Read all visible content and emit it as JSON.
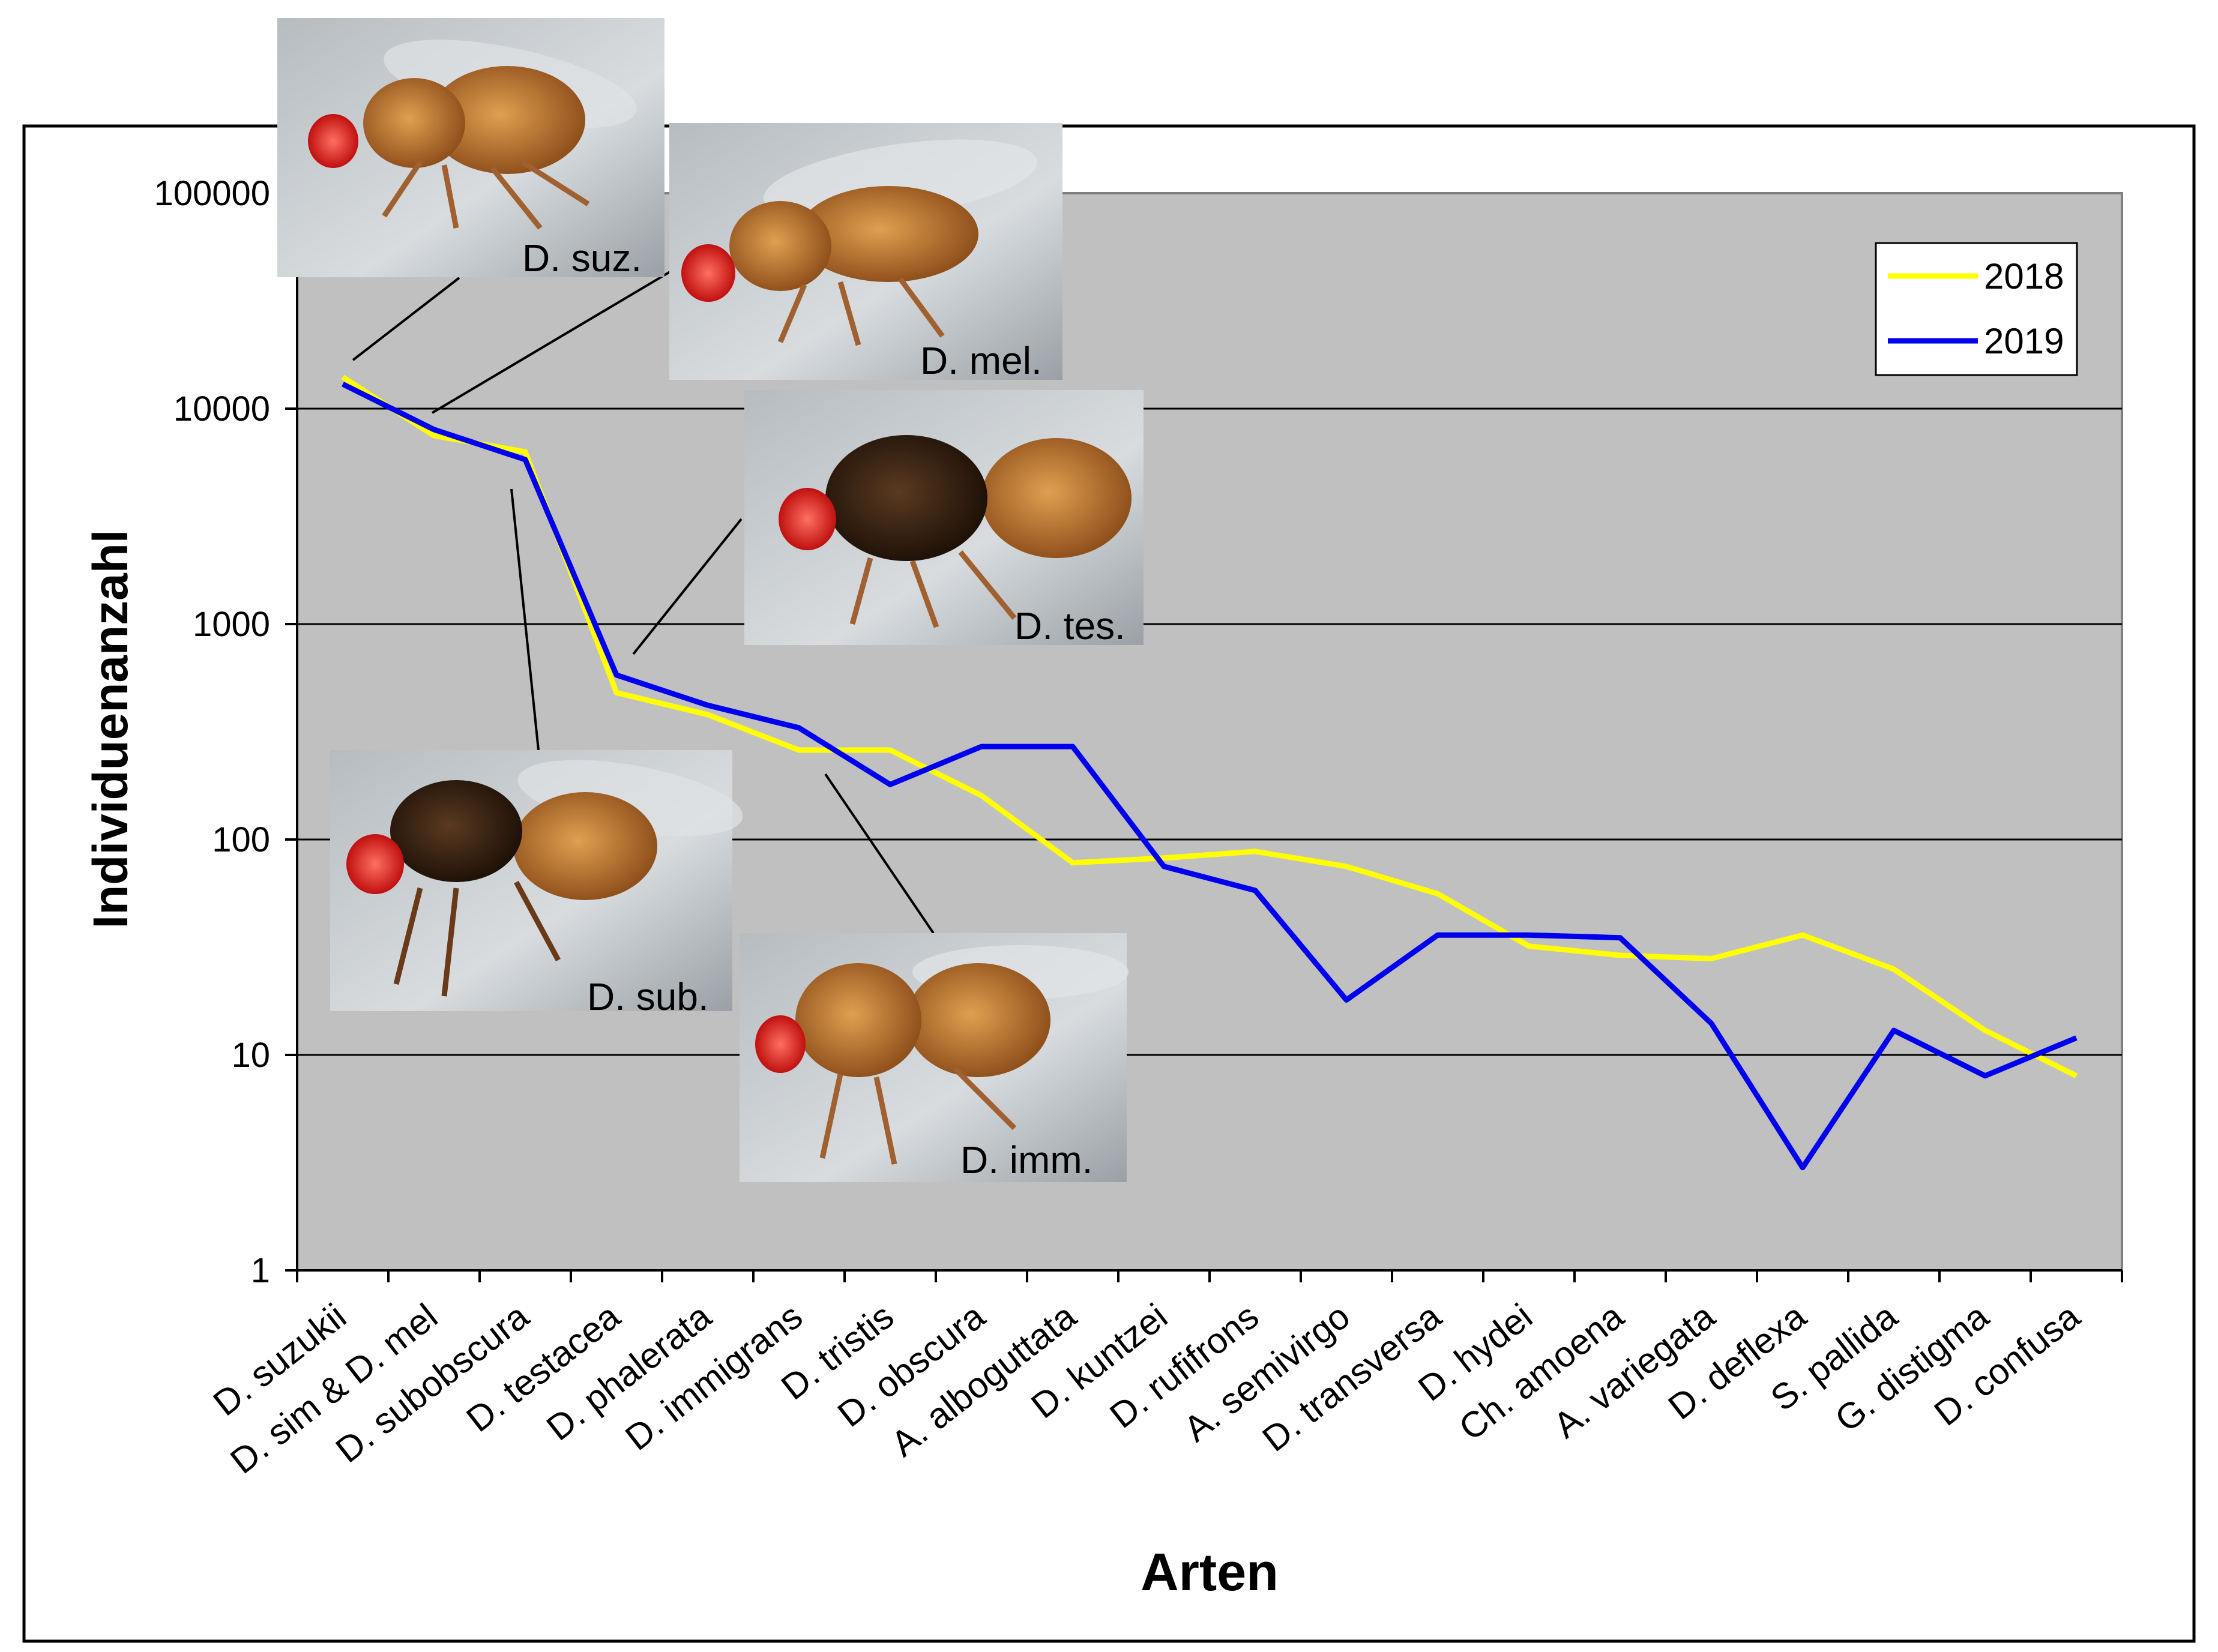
{
  "chart_data": {
    "type": "line",
    "title": "",
    "xlabel": "Arten",
    "ylabel": "Individuenanzahl",
    "yscale": "log",
    "ylim": [
      1,
      100000
    ],
    "yticks": [
      "1",
      "10",
      "100",
      "1000",
      "10000",
      "100000"
    ],
    "grid": true,
    "legend_position": "top-right",
    "categories": [
      "D. suzukii",
      "D. sim & D. mel",
      "D. subobscura",
      "D. testacea",
      "D. phalerata",
      "D. immigrans",
      "D. tristis",
      "D. obscura",
      "A. alboguttata",
      "D. kuntzei",
      "D. rufifrons",
      "A. semivirgo",
      "D. transversa",
      "D. hydei",
      "Ch. amoena",
      "A. variegata",
      "D. deflexa",
      "S. pallida",
      "G. distigma",
      "D. confusa"
    ],
    "series": [
      {
        "name": "2018",
        "color": "#ffff00",
        "values": [
          14000,
          7500,
          6300,
          480,
          380,
          260,
          260,
          160,
          78,
          82,
          88,
          75,
          56,
          32,
          29,
          28,
          36,
          25,
          13,
          8
        ]
      },
      {
        "name": "2019",
        "color": "#0000ee",
        "values": [
          13000,
          8000,
          5800,
          580,
          420,
          330,
          180,
          270,
          270,
          75,
          58,
          18,
          36,
          36,
          35,
          14,
          3,
          13,
          8,
          12
        ]
      }
    ]
  },
  "photos": [
    {
      "label": "D. suz.",
      "pointer_category": 0
    },
    {
      "label": "D. mel.",
      "pointer_category": 1
    },
    {
      "label": "D. tes.",
      "pointer_category": 3
    },
    {
      "label": "D. sub.",
      "pointer_category": 2
    },
    {
      "label": "D. imm.",
      "pointer_category": 5
    }
  ]
}
